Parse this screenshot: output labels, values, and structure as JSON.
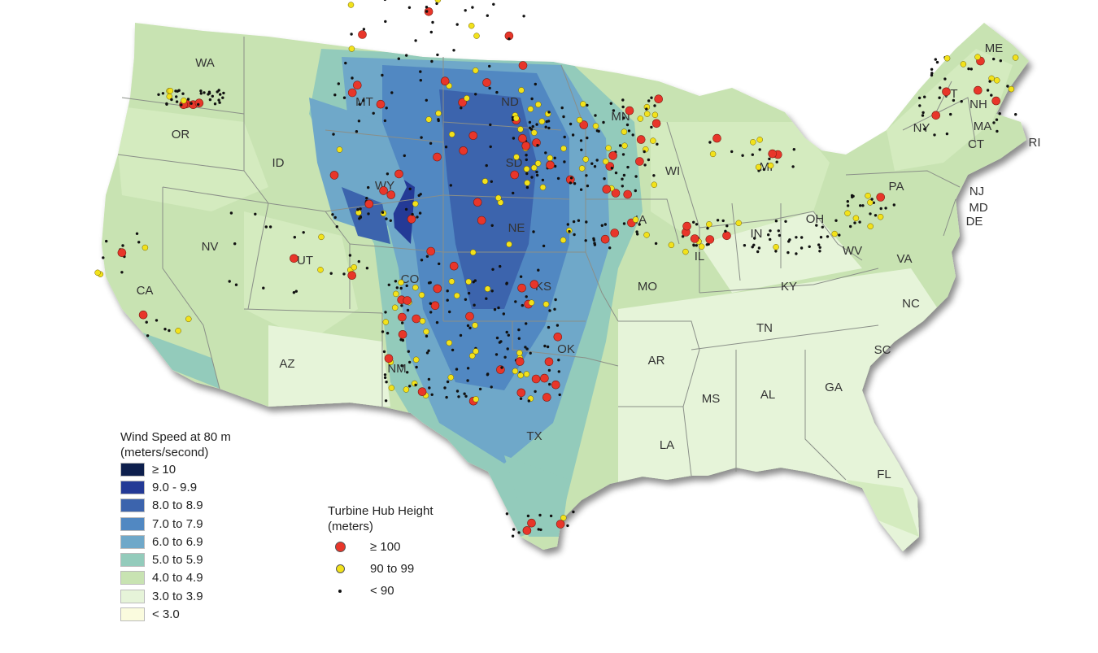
{
  "map": {
    "states": [
      "WA",
      "OR",
      "CA",
      "ID",
      "NV",
      "MT",
      "WY",
      "UT",
      "AZ",
      "CO",
      "NM",
      "ND",
      "SD",
      "NE",
      "KS",
      "OK",
      "TX",
      "MN",
      "IA",
      "MO",
      "AR",
      "LA",
      "WI",
      "IL",
      "MI",
      "IN",
      "OH",
      "KY",
      "TN",
      "MS",
      "AL",
      "GA",
      "FL",
      "SC",
      "NC",
      "VA",
      "WV",
      "PA",
      "NY",
      "VT",
      "NH",
      "ME",
      "MA",
      "CT",
      "RI",
      "NJ",
      "MD",
      "DE"
    ]
  },
  "wind_legend": {
    "title_line1": "Wind Speed at 80 m",
    "title_line2": "(meters/second)",
    "items": [
      {
        "label": "≥ 10",
        "color": "#0d1f4d"
      },
      {
        "label": "9.0 - 9.9",
        "color": "#243a96"
      },
      {
        "label": "8.0 to 8.9",
        "color": "#3c64ad"
      },
      {
        "label": "7.0 to 7.9",
        "color": "#5188c2"
      },
      {
        "label": "6.0 to 6.9",
        "color": "#6fa8c9"
      },
      {
        "label": "5.0 to 5.9",
        "color": "#93cbbb"
      },
      {
        "label": "4.0 to 4.9",
        "color": "#c8e3b2"
      },
      {
        "label": "3.0 to 3.9",
        "color": "#e6f4d9"
      },
      {
        "label": "< 3.0",
        "color": "#fafbde"
      }
    ]
  },
  "hub_legend": {
    "title_line1": "Turbine Hub Height",
    "title_line2": "(meters)",
    "items": [
      {
        "label": "≥ 100",
        "color": "#e8362a"
      },
      {
        "label": "90 to 99",
        "color": "#f2e21b"
      },
      {
        "label": "< 90",
        "color": "#111111"
      }
    ]
  }
}
